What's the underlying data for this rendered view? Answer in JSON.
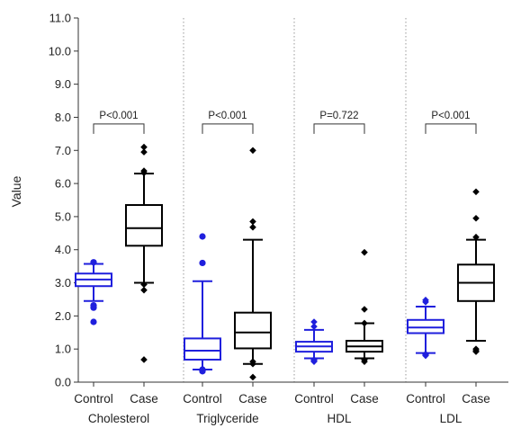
{
  "chart_data": {
    "type": "box",
    "ylabel": "Value",
    "ylim": [
      0,
      11
    ],
    "yticks": [
      "0.0",
      "1.0",
      "2.0",
      "3.0",
      "4.0",
      "5.0",
      "6.0",
      "7.0",
      "8.0",
      "9.0",
      "10.0",
      "11.0"
    ],
    "colors": {
      "Control": "#1f1fdd",
      "Case": "#000000"
    },
    "groups": [
      {
        "name": "Cholesterol",
        "p": "P<0.001",
        "boxes": [
          {
            "label": "Control",
            "min": 2.45,
            "q1": 2.9,
            "median": 3.1,
            "q3": 3.28,
            "max": 3.57,
            "outliers": [
              3.62,
              2.32,
              2.25,
              1.82
            ],
            "marker": "circle"
          },
          {
            "label": "Case",
            "min": 3.0,
            "q1": 4.12,
            "median": 4.65,
            "q3": 5.35,
            "max": 6.3,
            "outliers": [
              7.1,
              6.95,
              6.38,
              6.32,
              2.95,
              2.78,
              0.68
            ],
            "marker": "diamond"
          }
        ]
      },
      {
        "name": "Triglyceride",
        "p": "P<0.001",
        "boxes": [
          {
            "label": "Control",
            "min": 0.38,
            "q1": 0.68,
            "median": 0.95,
            "q3": 1.32,
            "max": 3.05,
            "outliers": [
              4.4,
              3.6,
              0.38,
              0.35,
              0.33
            ],
            "marker": "circle"
          },
          {
            "label": "Case",
            "min": 0.55,
            "q1": 1.02,
            "median": 1.5,
            "q3": 2.1,
            "max": 4.3,
            "outliers": [
              7.0,
              4.85,
              4.68,
              0.62,
              0.55,
              0.15
            ],
            "marker": "diamond"
          }
        ]
      },
      {
        "name": "HDL",
        "p": "P=0.722",
        "boxes": [
          {
            "label": "Control",
            "min": 0.72,
            "q1": 0.92,
            "median": 1.08,
            "q3": 1.22,
            "max": 1.58,
            "outliers": [
              1.82,
              1.68,
              0.68,
              0.65,
              0.62
            ],
            "marker": "diamond"
          },
          {
            "label": "Case",
            "min": 0.72,
            "q1": 0.92,
            "median": 1.08,
            "q3": 1.25,
            "max": 1.78,
            "outliers": [
              3.92,
              2.2,
              1.78,
              0.68,
              0.62
            ],
            "marker": "diamond"
          }
        ]
      },
      {
        "name": "LDL",
        "p": "P<0.001",
        "boxes": [
          {
            "label": "Control",
            "min": 0.88,
            "q1": 1.48,
            "median": 1.65,
            "q3": 1.88,
            "max": 2.28,
            "outliers": [
              2.48,
              2.42,
              0.85,
              0.82,
              0.8
            ],
            "marker": "diamond"
          },
          {
            "label": "Case",
            "min": 1.25,
            "q1": 2.45,
            "median": 3.0,
            "q3": 3.55,
            "max": 4.3,
            "outliers": [
              5.75,
              4.95,
              4.38,
              1.0,
              0.95,
              0.92
            ],
            "marker": "diamond"
          }
        ]
      }
    ]
  }
}
